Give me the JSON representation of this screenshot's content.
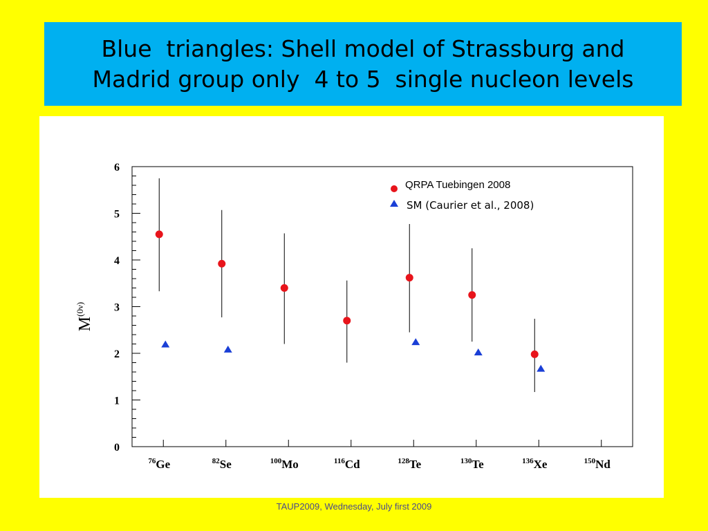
{
  "slide": {
    "title_line1": "Blue  triangles: Shell model of Strassburg and",
    "title_line2": "Madrid group only  4 to 5  single nucleon levels",
    "footer": "TAUP2009, Wednesday, July first 2009"
  },
  "colors": {
    "background": "#ffff00",
    "title_box": "#00b0f0",
    "qrpa": "#e8141b",
    "sm": "#1a3fd6"
  },
  "chart_data": {
    "type": "scatter",
    "ylabel": "M",
    "ylabel_sup": "(0ν)",
    "ylim": [
      0,
      6
    ],
    "yticks": [
      "0",
      "1",
      "2",
      "3",
      "4",
      "5",
      "6"
    ],
    "categories": [
      {
        "sup": "76",
        "el": "Ge"
      },
      {
        "sup": "82",
        "el": "Se"
      },
      {
        "sup": "100",
        "el": "Mo"
      },
      {
        "sup": "116",
        "el": "Cd"
      },
      {
        "sup": "128",
        "el": "Te"
      },
      {
        "sup": "130",
        "el": "Te"
      },
      {
        "sup": "136",
        "el": "Xe"
      },
      {
        "sup": "150",
        "el": "Nd"
      }
    ],
    "series": [
      {
        "name": "QRPA Tuebingen 2008",
        "marker": "circle",
        "values": [
          4.55,
          3.92,
          3.4,
          2.7,
          3.62,
          3.25,
          1.98,
          null
        ],
        "err_low": [
          3.33,
          2.77,
          2.2,
          1.8,
          2.45,
          2.25,
          1.17,
          null
        ],
        "err_high": [
          5.75,
          5.07,
          4.57,
          3.56,
          4.77,
          4.25,
          2.74,
          null
        ]
      },
      {
        "name": "SM (Caurier et al., 2008)",
        "marker": "triangle",
        "values": [
          2.2,
          2.09,
          null,
          null,
          2.25,
          2.03,
          1.68,
          null
        ]
      }
    ],
    "legend_position": "top-right",
    "grid": false
  }
}
